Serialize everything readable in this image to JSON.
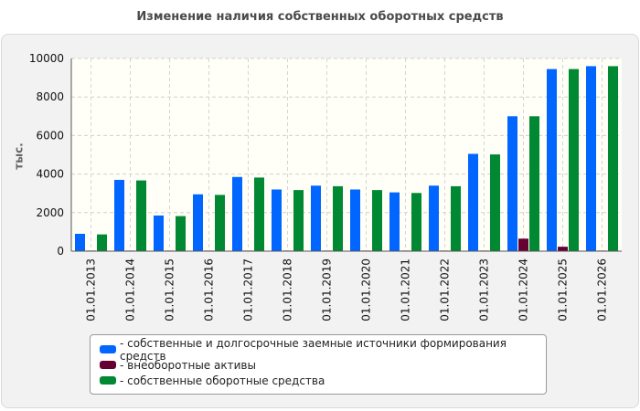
{
  "chart_data": {
    "type": "bar",
    "title": "Изменение наличия собственных оборотных средств",
    "ylabel": "тыс.",
    "xlabel": "",
    "ylim": [
      0,
      10000
    ],
    "yticks": [
      0,
      2000,
      4000,
      6000,
      8000,
      10000
    ],
    "grid": true,
    "legend_position": "bottom",
    "categories": [
      "01.01.2013",
      "01.01.2014",
      "01.01.2015",
      "01.01.2016",
      "01.01.2017",
      "01.01.2018",
      "01.01.2019",
      "01.01.2020",
      "01.01.2021",
      "01.01.2022",
      "01.01.2023",
      "01.01.2024",
      "01.01.2025",
      "01.01.2026"
    ],
    "series": [
      {
        "name": "собственные и долгосрочные заемные источники формирования средств",
        "color": "#0066ff",
        "values": [
          900,
          3700,
          1850,
          2950,
          3850,
          3200,
          3400,
          3200,
          3050,
          3400,
          5050,
          7000,
          9450,
          9600
        ]
      },
      {
        "name": "внеоборотные активы",
        "color": "#660033",
        "values": [
          30,
          30,
          30,
          30,
          30,
          30,
          30,
          30,
          30,
          30,
          30,
          650,
          230,
          30
        ]
      },
      {
        "name": "собственные оборотные средства",
        "color": "#008833",
        "values": [
          870,
          3670,
          1820,
          2920,
          3820,
          3170,
          3370,
          3170,
          3020,
          3370,
          5020,
          7000,
          9450,
          9600
        ]
      }
    ]
  }
}
